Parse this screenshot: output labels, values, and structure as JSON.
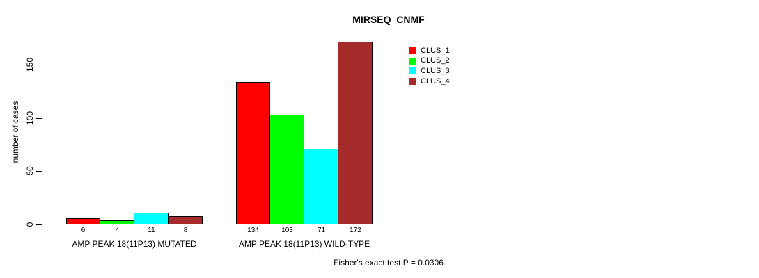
{
  "chart_data": {
    "type": "bar",
    "title": "MIRSEQ_CNMF",
    "ylabel": "number of cases",
    "xlabel": "",
    "footnote": "Fisher's exact test P = 0.0306",
    "categories": [
      "AMP PEAK 18(11P13) MUTATED",
      "AMP PEAK 18(11P13) WILD-TYPE"
    ],
    "series": [
      {
        "name": "CLUS_1",
        "color": "#FF0000",
        "values": [
          6,
          134
        ]
      },
      {
        "name": "CLUS_2",
        "color": "#00FF00",
        "values": [
          4,
          103
        ]
      },
      {
        "name": "CLUS_3",
        "color": "#00FFFF",
        "values": [
          11,
          71
        ]
      },
      {
        "name": "CLUS_4",
        "color": "#A52A2A",
        "values": [
          8,
          172
        ]
      }
    ],
    "bar_labels": [
      [
        6,
        4,
        11,
        8
      ],
      [
        134,
        103,
        71,
        172
      ]
    ],
    "yticks": [
      0,
      50,
      100,
      150
    ],
    "axis_range": [
      0,
      150
    ],
    "grid": false,
    "legend_position": "top-right",
    "bar_border_color": "#000000",
    "background_color": "#FFFFFF"
  }
}
